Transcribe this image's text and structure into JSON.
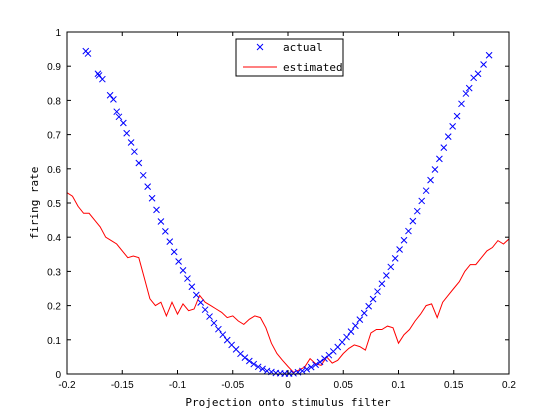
{
  "chart_data": {
    "type": "scatter",
    "xlabel": "Projection onto stimulus filter",
    "ylabel": "firing rate",
    "xlim": [
      -0.2,
      0.2
    ],
    "ylim": [
      0,
      1
    ],
    "xticks": [
      "-0.2",
      "-0.15",
      "-0.1",
      "-0.05",
      "0",
      "0.05",
      "0.1",
      "0.15",
      "0.2"
    ],
    "yticks": [
      "0",
      "0.1",
      "0.2",
      "0.3",
      "0.4",
      "0.5",
      "0.6",
      "0.7",
      "0.8",
      "0.9",
      "1"
    ],
    "grid": false,
    "legend_position": "top-center",
    "series": [
      {
        "name": "actual",
        "marker": "x",
        "color": "#0000ff",
        "x": [
          -0.183,
          -0.181,
          -0.172,
          -0.171,
          -0.168,
          -0.161,
          -0.158,
          -0.155,
          -0.153,
          -0.149,
          -0.146,
          -0.142,
          -0.139,
          -0.135,
          -0.131,
          -0.127,
          -0.123,
          -0.119,
          -0.115,
          -0.111,
          -0.107,
          -0.103,
          -0.099,
          -0.095,
          -0.091,
          -0.087,
          -0.083,
          -0.079,
          -0.075,
          -0.071,
          -0.067,
          -0.063,
          -0.059,
          -0.055,
          -0.051,
          -0.047,
          -0.043,
          -0.039,
          -0.035,
          -0.031,
          -0.027,
          -0.023,
          -0.019,
          -0.015,
          -0.011,
          -0.007,
          -0.003,
          0.001,
          0.005,
          0.009,
          0.013,
          0.017,
          0.021,
          0.025,
          0.029,
          0.033,
          0.037,
          0.041,
          0.045,
          0.049,
          0.053,
          0.057,
          0.061,
          0.065,
          0.069,
          0.073,
          0.077,
          0.081,
          0.085,
          0.089,
          0.093,
          0.097,
          0.101,
          0.105,
          0.109,
          0.113,
          0.117,
          0.121,
          0.125,
          0.129,
          0.133,
          0.137,
          0.141,
          0.145,
          0.149,
          0.153,
          0.157,
          0.161,
          0.164,
          0.168,
          0.172,
          0.177,
          0.182
        ],
        "y": [
          0.944,
          0.937,
          0.878,
          0.873,
          0.862,
          0.815,
          0.803,
          0.767,
          0.752,
          0.734,
          0.704,
          0.677,
          0.65,
          0.617,
          0.581,
          0.548,
          0.514,
          0.48,
          0.446,
          0.417,
          0.387,
          0.357,
          0.329,
          0.303,
          0.279,
          0.255,
          0.231,
          0.209,
          0.188,
          0.168,
          0.149,
          0.131,
          0.115,
          0.099,
          0.085,
          0.072,
          0.059,
          0.048,
          0.038,
          0.029,
          0.021,
          0.015,
          0.009,
          0.006,
          0.003,
          0.002,
          0.001,
          0.001,
          0.002,
          0.005,
          0.009,
          0.014,
          0.02,
          0.027,
          0.035,
          0.045,
          0.055,
          0.066,
          0.079,
          0.093,
          0.108,
          0.124,
          0.141,
          0.159,
          0.178,
          0.198,
          0.219,
          0.241,
          0.264,
          0.288,
          0.313,
          0.338,
          0.364,
          0.391,
          0.418,
          0.447,
          0.476,
          0.506,
          0.536,
          0.567,
          0.598,
          0.629,
          0.662,
          0.694,
          0.724,
          0.754,
          0.79,
          0.82,
          0.836,
          0.866,
          0.878,
          0.905,
          0.932
        ]
      },
      {
        "name": "estimated",
        "marker": "line",
        "color": "#ff0000",
        "x": [
          -0.2,
          -0.195,
          -0.19,
          -0.185,
          -0.18,
          -0.175,
          -0.17,
          -0.165,
          -0.16,
          -0.155,
          -0.15,
          -0.145,
          -0.14,
          -0.135,
          -0.13,
          -0.125,
          -0.12,
          -0.115,
          -0.11,
          -0.105,
          -0.1,
          -0.095,
          -0.09,
          -0.085,
          -0.08,
          -0.075,
          -0.07,
          -0.065,
          -0.06,
          -0.055,
          -0.05,
          -0.045,
          -0.04,
          -0.035,
          -0.03,
          -0.025,
          -0.02,
          -0.015,
          -0.01,
          -0.005,
          0.0,
          0.005,
          0.01,
          0.015,
          0.02,
          0.025,
          0.03,
          0.035,
          0.04,
          0.045,
          0.05,
          0.055,
          0.06,
          0.065,
          0.07,
          0.075,
          0.08,
          0.085,
          0.09,
          0.095,
          0.1,
          0.105,
          0.11,
          0.115,
          0.12,
          0.125,
          0.13,
          0.135,
          0.14,
          0.145,
          0.15,
          0.155,
          0.16,
          0.165,
          0.17,
          0.175,
          0.18,
          0.185,
          0.19,
          0.195,
          0.2
        ],
        "y": [
          0.53,
          0.52,
          0.49,
          0.47,
          0.47,
          0.45,
          0.43,
          0.4,
          0.39,
          0.38,
          0.36,
          0.34,
          0.345,
          0.34,
          0.28,
          0.22,
          0.2,
          0.21,
          0.17,
          0.21,
          0.175,
          0.205,
          0.185,
          0.19,
          0.23,
          0.21,
          0.2,
          0.19,
          0.18,
          0.165,
          0.17,
          0.155,
          0.145,
          0.16,
          0.17,
          0.165,
          0.135,
          0.09,
          0.06,
          0.04,
          0.022,
          0.005,
          0.012,
          0.02,
          0.045,
          0.03,
          0.025,
          0.05,
          0.032,
          0.04,
          0.06,
          0.075,
          0.085,
          0.08,
          0.07,
          0.12,
          0.13,
          0.13,
          0.14,
          0.135,
          0.09,
          0.115,
          0.13,
          0.155,
          0.175,
          0.2,
          0.205,
          0.165,
          0.21,
          0.23,
          0.25,
          0.27,
          0.3,
          0.32,
          0.32,
          0.34,
          0.36,
          0.37,
          0.39,
          0.38,
          0.395
        ]
      }
    ]
  }
}
